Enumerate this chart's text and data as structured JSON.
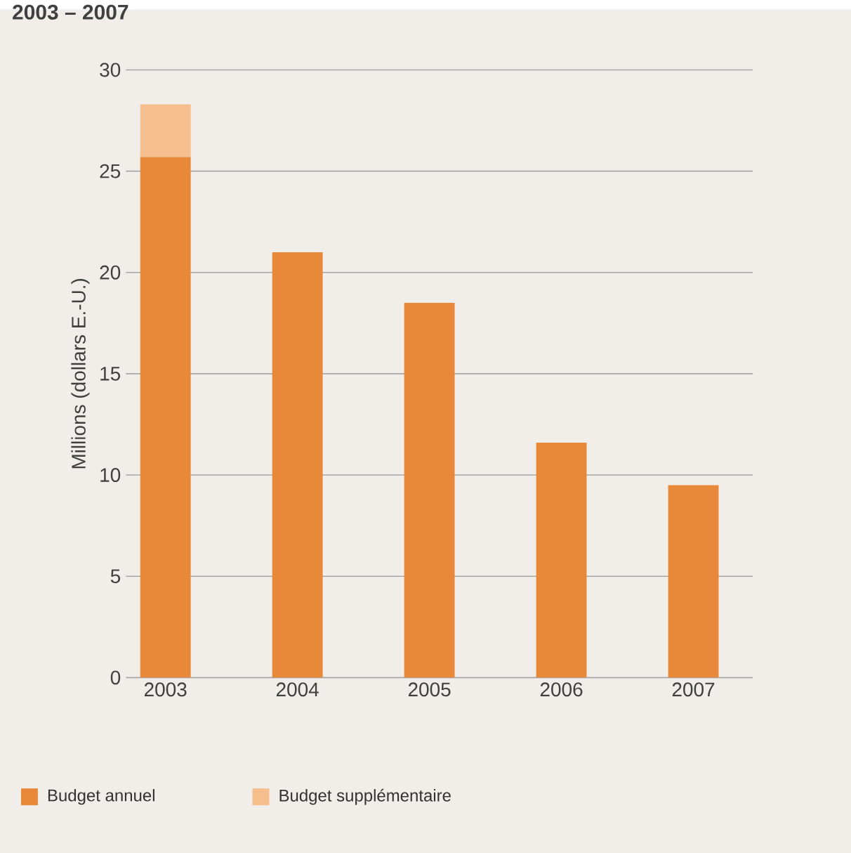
{
  "chart_data": {
    "type": "bar",
    "title": "2003 – 2007",
    "ylabel": "Millions (dollars E.-U.)",
    "categories": [
      "2003",
      "2004",
      "2005",
      "2006",
      "2007"
    ],
    "stacked": true,
    "series": [
      {
        "name": "Budget annuel",
        "color": "#e8893a",
        "values": [
          25.7,
          21.0,
          18.5,
          11.6,
          9.5
        ]
      },
      {
        "name": "Budget supplémentaire",
        "color": "#f5be8c",
        "values": [
          2.6,
          0,
          0,
          0,
          0
        ]
      }
    ],
    "ylim": [
      0,
      30
    ],
    "yticks": [
      0,
      5,
      10,
      15,
      20,
      25,
      30
    ],
    "grid": "y",
    "legend": "bottom left"
  }
}
